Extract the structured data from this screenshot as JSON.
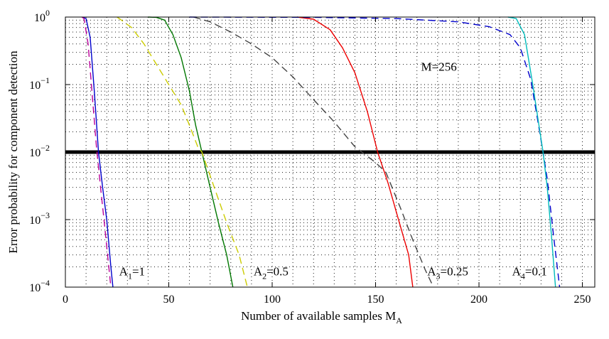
{
  "chart_data": {
    "type": "line",
    "title": "",
    "xlabel": "Number of available samples M",
    "xlabel_sub": "A",
    "ylabel": "Error probability for component detection",
    "xlim": [
      0,
      256
    ],
    "ylim": [
      0.0001,
      1
    ],
    "yscale": "log",
    "grid": "dotted",
    "x_ticks": [
      0,
      50,
      100,
      150,
      200,
      250
    ],
    "x_tick_labels": [
      "0",
      "50",
      "100",
      "150",
      "200",
      "250"
    ],
    "y_ticks": [
      {
        "value": 1,
        "mantissa": "10",
        "exponent": "0"
      },
      {
        "value": 0.1,
        "mantissa": "10",
        "exponent": "−1"
      },
      {
        "value": 0.01,
        "mantissa": "10",
        "exponent": "−2"
      },
      {
        "value": 0.001,
        "mantissa": "10",
        "exponent": "−3"
      },
      {
        "value": 0.0001,
        "mantissa": "10",
        "exponent": "−4"
      }
    ],
    "reference_line": {
      "y": 0.01,
      "color": "#000000"
    },
    "annotations": [
      {
        "text": "M=256",
        "x": 172,
        "y": 0.16
      },
      {
        "main": "A",
        "sub": "1",
        "rest": "=1",
        "x": 26,
        "y": 0.00015
      },
      {
        "main": "A",
        "sub": "2",
        "rest": "=0.5",
        "x": 91,
        "y": 0.00015
      },
      {
        "main": "A",
        "sub": "3",
        "rest": "=0.25",
        "x": 175,
        "y": 0.00015
      },
      {
        "main": "A",
        "sub": "4",
        "rest": "=0.1",
        "x": 216,
        "y": 0.00015
      }
    ],
    "series": [
      {
        "color": "#0000cc",
        "dash": "solid",
        "points": [
          [
            8,
            1
          ],
          [
            10,
            0.95
          ],
          [
            12,
            0.5
          ],
          [
            14,
            0.08
          ],
          [
            16,
            0.01
          ],
          [
            18,
            0.003
          ],
          [
            20,
            0.001
          ],
          [
            22,
            0.0002
          ],
          [
            23,
            0.0001
          ]
        ]
      },
      {
        "color": "#bb0099",
        "dash": "dashed",
        "points": [
          [
            8,
            1
          ],
          [
            9,
            0.95
          ],
          [
            11,
            0.4
          ],
          [
            13,
            0.07
          ],
          [
            15,
            0.012
          ],
          [
            17,
            0.003
          ],
          [
            19,
            0.0008
          ],
          [
            21,
            0.0002
          ],
          [
            22,
            0.0001
          ]
        ]
      },
      {
        "color": "#007700",
        "dash": "solid",
        "points": [
          [
            40,
            1
          ],
          [
            44,
            0.99
          ],
          [
            48,
            0.9
          ],
          [
            52,
            0.55
          ],
          [
            56,
            0.25
          ],
          [
            60,
            0.08
          ],
          [
            63,
            0.025
          ],
          [
            66,
            0.01
          ],
          [
            70,
            0.003
          ],
          [
            74,
            0.0009
          ],
          [
            78,
            0.0003
          ],
          [
            81,
            0.0001
          ]
        ]
      },
      {
        "color": "#cccc00",
        "dash": "dashed",
        "points": [
          [
            25,
            1
          ],
          [
            32,
            0.7
          ],
          [
            38,
            0.4
          ],
          [
            44,
            0.2
          ],
          [
            50,
            0.1
          ],
          [
            56,
            0.05
          ],
          [
            60,
            0.025
          ],
          [
            64,
            0.012
          ],
          [
            66,
            0.01
          ],
          [
            72,
            0.003
          ],
          [
            78,
            0.0009
          ],
          [
            84,
            0.0003
          ],
          [
            88,
            0.0001
          ]
        ]
      },
      {
        "color": "#444444",
        "dash": "dashed",
        "points": [
          [
            62,
            1
          ],
          [
            70,
            0.85
          ],
          [
            80,
            0.6
          ],
          [
            90,
            0.4
          ],
          [
            100,
            0.25
          ],
          [
            110,
            0.13
          ],
          [
            120,
            0.06
          ],
          [
            130,
            0.028
          ],
          [
            140,
            0.012
          ],
          [
            150,
            0.007
          ],
          [
            155,
            0.005
          ],
          [
            162,
            0.0015
          ],
          [
            168,
            0.0005
          ],
          [
            174,
            0.00018
          ],
          [
            178,
            0.0001
          ]
        ]
      },
      {
        "color": "#ee0000",
        "dash": "solid",
        "points": [
          [
            112,
            1
          ],
          [
            120,
            0.93
          ],
          [
            128,
            0.65
          ],
          [
            134,
            0.35
          ],
          [
            140,
            0.15
          ],
          [
            146,
            0.04
          ],
          [
            151,
            0.01
          ],
          [
            156,
            0.0035
          ],
          [
            162,
            0.0008
          ],
          [
            166,
            0.0003
          ],
          [
            168,
            0.0001
          ]
        ]
      },
      {
        "color": "#0000cc",
        "dash": "dashed",
        "points": [
          [
            60,
            1
          ],
          [
            120,
            0.99
          ],
          [
            160,
            0.95
          ],
          [
            190,
            0.85
          ],
          [
            205,
            0.72
          ],
          [
            215,
            0.55
          ],
          [
            220,
            0.35
          ],
          [
            225,
            0.12
          ],
          [
            228,
            0.035
          ],
          [
            231,
            0.01
          ],
          [
            233,
            0.004
          ],
          [
            236,
            0.0006
          ],
          [
            239,
            0.0001
          ]
        ]
      },
      {
        "color": "#00bbbb",
        "dash": "solid",
        "points": [
          [
            214,
            1
          ],
          [
            218,
            0.95
          ],
          [
            222,
            0.55
          ],
          [
            226,
            0.1
          ],
          [
            229,
            0.025
          ],
          [
            231,
            0.01
          ],
          [
            233,
            0.003
          ],
          [
            235,
            0.0006
          ],
          [
            237,
            0.0001
          ]
        ]
      }
    ]
  }
}
